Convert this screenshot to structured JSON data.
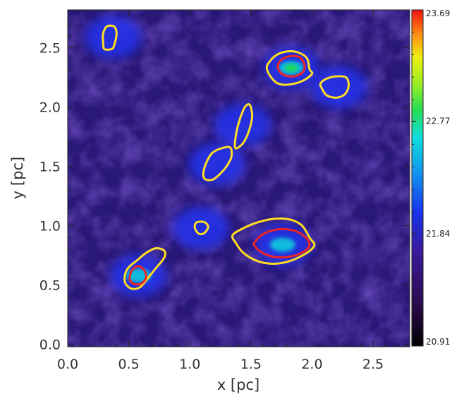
{
  "chart_data": {
    "type": "heatmap",
    "xlabel": "x [pc]",
    "ylabel": "y [pc]",
    "xlim": [
      0.0,
      2.8
    ],
    "ylim": [
      -0.02,
      2.82
    ],
    "xticks": [
      "0.0",
      "0.5",
      "1.0",
      "1.5",
      "2.0",
      "2.5"
    ],
    "yticks": [
      "0.0",
      "0.5",
      "1.0",
      "1.5",
      "2.0",
      "2.5"
    ],
    "colorbar": {
      "range": [
        20.91,
        23.69
      ],
      "tick_labels": [
        "20.91",
        "21.84",
        "22.77",
        "23.69"
      ],
      "tick_values": [
        20.91,
        21.84,
        22.77,
        23.69
      ]
    },
    "colors": {
      "background_low": "#1a0a38",
      "background_mid": "#2a1878",
      "blue": "#2233ee",
      "cyan": "#11ccdd",
      "green": "#22dd44",
      "contour_outer": "#ffdd22",
      "contour_inner": "#ee2222"
    },
    "sources": [
      {
        "x": 0.37,
        "y": 2.59,
        "peak": 21.6
      },
      {
        "x": 1.83,
        "y": 2.33,
        "peak": 23.0
      },
      {
        "x": 2.22,
        "y": 2.17,
        "peak": 21.7
      },
      {
        "x": 1.43,
        "y": 1.85,
        "peak": 21.6
      },
      {
        "x": 1.22,
        "y": 1.52,
        "peak": 21.7
      },
      {
        "x": 1.09,
        "y": 0.98,
        "peak": 21.4
      },
      {
        "x": 1.76,
        "y": 0.84,
        "peak": 22.3
      },
      {
        "x": 0.58,
        "y": 0.58,
        "peak": 22.2
      }
    ],
    "contours": {
      "outer": [
        [
          [
            0.29,
            2.62
          ],
          [
            0.32,
            2.68
          ],
          [
            0.38,
            2.68
          ],
          [
            0.4,
            2.62
          ],
          [
            0.38,
            2.52
          ],
          [
            0.36,
            2.49
          ],
          [
            0.3,
            2.49
          ],
          [
            0.29,
            2.55
          ]
        ],
        [
          [
            1.63,
            2.33
          ],
          [
            1.65,
            2.38
          ],
          [
            1.71,
            2.44
          ],
          [
            1.8,
            2.47
          ],
          [
            1.89,
            2.46
          ],
          [
            1.96,
            2.41
          ],
          [
            1.98,
            2.32
          ],
          [
            2.0,
            2.28
          ],
          [
            1.92,
            2.22
          ],
          [
            1.81,
            2.19
          ],
          [
            1.72,
            2.2
          ],
          [
            1.66,
            2.26
          ]
        ],
        [
          [
            2.07,
            2.2
          ],
          [
            2.12,
            2.24
          ],
          [
            2.2,
            2.26
          ],
          [
            2.28,
            2.25
          ],
          [
            2.3,
            2.18
          ],
          [
            2.27,
            2.11
          ],
          [
            2.2,
            2.08
          ],
          [
            2.12,
            2.1
          ],
          [
            2.08,
            2.16
          ]
        ],
        [
          [
            1.37,
            1.66
          ],
          [
            1.38,
            1.78
          ],
          [
            1.41,
            1.9
          ],
          [
            1.45,
            2.0
          ],
          [
            1.49,
            2.02
          ],
          [
            1.51,
            1.93
          ],
          [
            1.49,
            1.82
          ],
          [
            1.45,
            1.72
          ],
          [
            1.41,
            1.67
          ]
        ],
        [
          [
            1.11,
            1.43
          ],
          [
            1.13,
            1.52
          ],
          [
            1.18,
            1.61
          ],
          [
            1.25,
            1.65
          ],
          [
            1.33,
            1.66
          ],
          [
            1.34,
            1.58
          ],
          [
            1.3,
            1.5
          ],
          [
            1.25,
            1.44
          ],
          [
            1.19,
            1.39
          ],
          [
            1.13,
            1.39
          ]
        ],
        [
          [
            1.04,
            1.0
          ],
          [
            1.06,
            1.03
          ],
          [
            1.12,
            1.03
          ],
          [
            1.15,
            0.99
          ],
          [
            1.12,
            0.94
          ],
          [
            1.08,
            0.93
          ],
          [
            1.05,
            0.96
          ]
        ],
        [
          [
            1.35,
            0.92
          ],
          [
            1.44,
            0.98
          ],
          [
            1.56,
            1.03
          ],
          [
            1.7,
            1.06
          ],
          [
            1.83,
            1.05
          ],
          [
            1.92,
            1.0
          ],
          [
            1.98,
            0.9
          ],
          [
            2.02,
            0.84
          ],
          [
            1.97,
            0.78
          ],
          [
            1.84,
            0.71
          ],
          [
            1.7,
            0.68
          ],
          [
            1.56,
            0.7
          ],
          [
            1.44,
            0.77
          ],
          [
            1.38,
            0.85
          ]
        ],
        [
          [
            0.47,
            0.59
          ],
          [
            0.5,
            0.65
          ],
          [
            0.57,
            0.71
          ],
          [
            0.64,
            0.77
          ],
          [
            0.72,
            0.81
          ],
          [
            0.79,
            0.79
          ],
          [
            0.79,
            0.73
          ],
          [
            0.72,
            0.64
          ],
          [
            0.65,
            0.55
          ],
          [
            0.59,
            0.48
          ],
          [
            0.52,
            0.47
          ],
          [
            0.47,
            0.52
          ]
        ]
      ],
      "inner": [
        [
          [
            1.72,
            2.35
          ],
          [
            1.75,
            2.4
          ],
          [
            1.82,
            2.43
          ],
          [
            1.9,
            2.42
          ],
          [
            1.94,
            2.35
          ],
          [
            1.92,
            2.29
          ],
          [
            1.85,
            2.26
          ],
          [
            1.77,
            2.27
          ],
          [
            1.73,
            2.31
          ]
        ],
        [
          [
            1.53,
            0.86
          ],
          [
            1.6,
            0.93
          ],
          [
            1.72,
            0.97
          ],
          [
            1.85,
            0.96
          ],
          [
            1.94,
            0.91
          ],
          [
            1.98,
            0.84
          ],
          [
            1.93,
            0.78
          ],
          [
            1.82,
            0.74
          ],
          [
            1.68,
            0.74
          ],
          [
            1.58,
            0.78
          ],
          [
            1.53,
            0.83
          ]
        ],
        [
          [
            0.51,
            0.58
          ],
          [
            0.53,
            0.63
          ],
          [
            0.58,
            0.66
          ],
          [
            0.63,
            0.62
          ],
          [
            0.64,
            0.56
          ],
          [
            0.6,
            0.51
          ],
          [
            0.54,
            0.51
          ],
          [
            0.51,
            0.54
          ]
        ]
      ]
    }
  }
}
